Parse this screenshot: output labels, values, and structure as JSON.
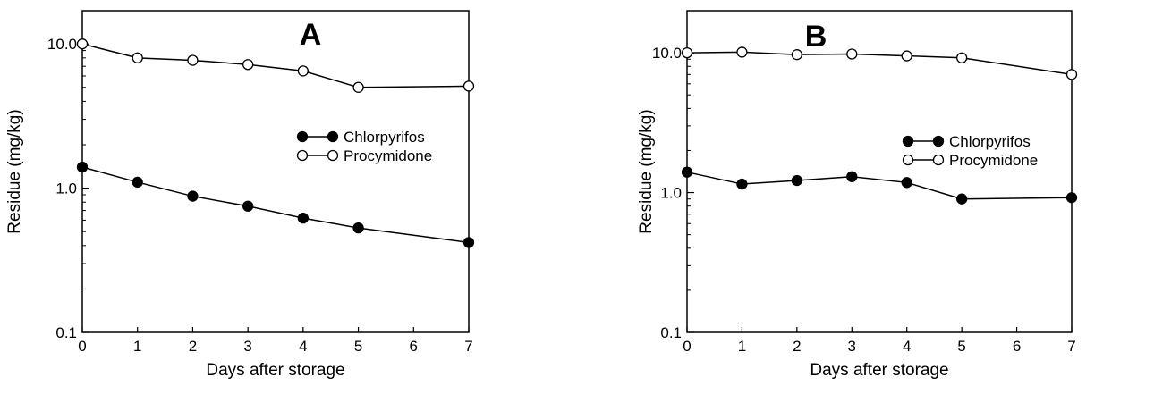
{
  "chart_data": [
    {
      "type": "line",
      "title": "A",
      "xlabel": "Days after storage",
      "ylabel": "Residue (mg/kg)",
      "yscale": "log",
      "xlim": [
        0,
        7
      ],
      "ylim": [
        0.1,
        17
      ],
      "x_ticks": [
        "0",
        "1",
        "2",
        "3",
        "4",
        "5",
        "6",
        "7"
      ],
      "y_ticks": [
        "0.1",
        "1.0",
        "10.0"
      ],
      "grid": false,
      "legend_position": "right-middle",
      "series": [
        {
          "name": "Chlorpyrifos",
          "marker": "filled-circle",
          "color": "#000000",
          "x": [
            0,
            1,
            2,
            3,
            4,
            5,
            7
          ],
          "values": [
            1.4,
            1.1,
            0.88,
            0.75,
            0.62,
            0.53,
            0.42
          ]
        },
        {
          "name": "Procymidone",
          "marker": "open-circle",
          "color": "#000000",
          "x": [
            0,
            1,
            2,
            3,
            4,
            5,
            7
          ],
          "values": [
            10.0,
            8.0,
            7.7,
            7.2,
            6.5,
            5.0,
            5.1
          ]
        }
      ]
    },
    {
      "type": "line",
      "title": "B",
      "xlabel": "Days after storage",
      "ylabel": "Residue (mg/kg)",
      "yscale": "log",
      "xlim": [
        0,
        7
      ],
      "ylim": [
        0.1,
        20
      ],
      "x_ticks": [
        "0",
        "1",
        "2",
        "3",
        "4",
        "5",
        "6",
        "7"
      ],
      "y_ticks": [
        "0.1",
        "1.0",
        "10.0"
      ],
      "grid": false,
      "legend_position": "right-middle",
      "series": [
        {
          "name": "Chlorpyrifos",
          "marker": "filled-circle",
          "color": "#000000",
          "x": [
            0,
            1,
            2,
            3,
            4,
            5,
            7
          ],
          "values": [
            1.4,
            1.15,
            1.22,
            1.3,
            1.18,
            0.9,
            0.92
          ]
        },
        {
          "name": "Procymidone",
          "marker": "open-circle",
          "color": "#000000",
          "x": [
            0,
            1,
            2,
            3,
            4,
            5,
            7
          ],
          "values": [
            10.0,
            10.1,
            9.7,
            9.8,
            9.5,
            9.2,
            7.0
          ]
        }
      ]
    }
  ]
}
